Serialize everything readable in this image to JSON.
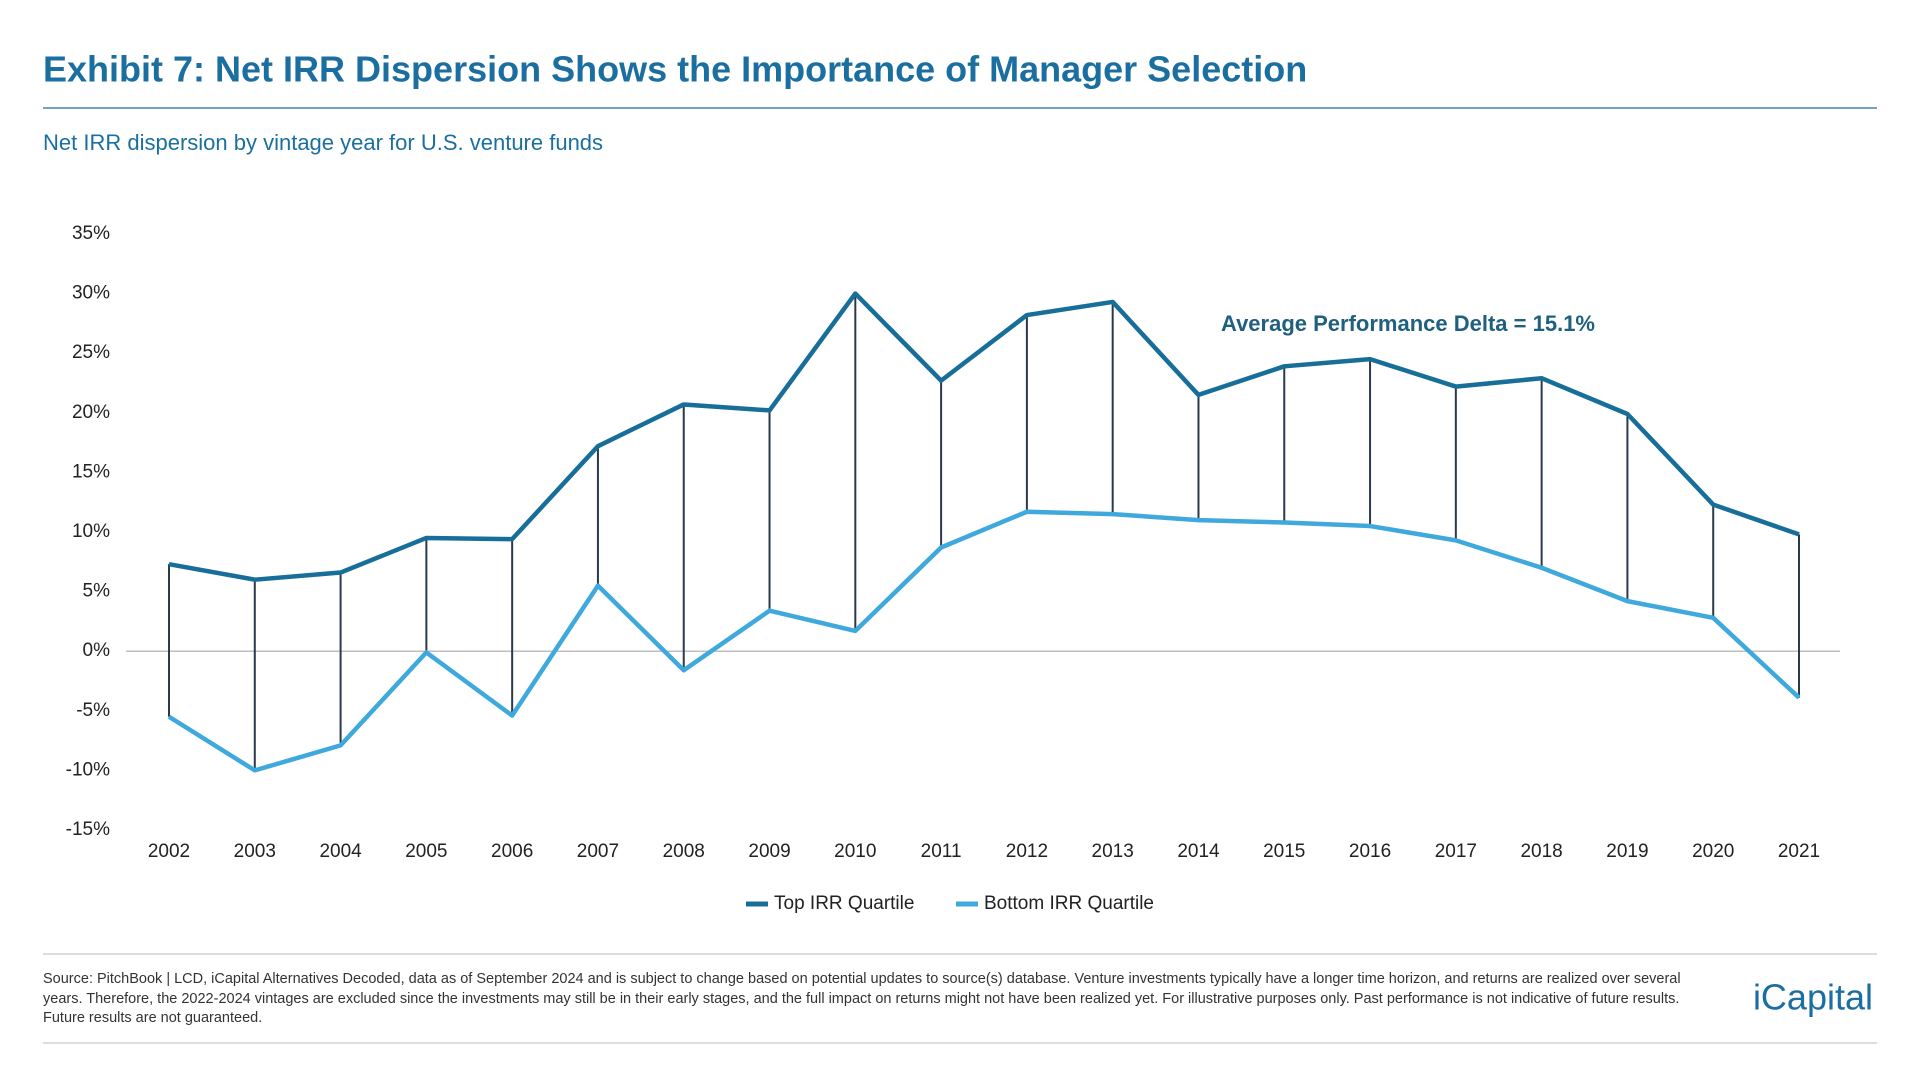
{
  "chart_data": {
    "type": "line",
    "title": "Exhibit 7: Net IRR Dispersion Shows the Importance of Manager Selection",
    "subtitle": "Net IRR dispersion by vintage year for U.S. venture funds",
    "annotation": "Average Performance Delta = 15.1%",
    "categories": [
      "2002",
      "2003",
      "2004",
      "2005",
      "2006",
      "2007",
      "2008",
      "2009",
      "2010",
      "2011",
      "2012",
      "2013",
      "2014",
      "2015",
      "2016",
      "2017",
      "2018",
      "2019",
      "2020",
      "2021"
    ],
    "series": [
      {
        "name": "Top IRR Quartile",
        "color": "#176e98",
        "values": [
          7.3,
          6.0,
          6.6,
          9.5,
          9.4,
          17.2,
          20.7,
          20.2,
          30.0,
          22.7,
          28.2,
          29.3,
          21.5,
          23.9,
          24.5,
          22.2,
          22.9,
          19.9,
          12.3,
          9.8
        ]
      },
      {
        "name": "Bottom IRR Quartile",
        "color": "#3fa9dd",
        "values": [
          -5.5,
          -10.0,
          -7.9,
          -0.1,
          -5.4,
          5.5,
          -1.6,
          3.4,
          1.7,
          8.7,
          11.7,
          11.5,
          11.0,
          10.8,
          10.5,
          9.3,
          7.0,
          4.2,
          2.8,
          -3.9
        ]
      }
    ],
    "connector_color": "#2b3a4a",
    "ylim": [
      -15,
      35
    ],
    "yticks": [
      {
        "value": -15,
        "label": "-15%"
      },
      {
        "value": -10,
        "label": "-10%"
      },
      {
        "value": -5,
        "label": "-5%"
      },
      {
        "value": 0,
        "label": "0%"
      },
      {
        "value": 5,
        "label": "5%"
      },
      {
        "value": 10,
        "label": "10%"
      },
      {
        "value": 15,
        "label": "15%"
      },
      {
        "value": 20,
        "label": "20%"
      },
      {
        "value": 25,
        "label": "25%"
      },
      {
        "value": 30,
        "label": "30%"
      },
      {
        "value": 35,
        "label": "35%"
      }
    ],
    "source": "Source: PitchBook | LCD, iCapital Alternatives Decoded, data as of September 2024 and is subject to change based on potential updates to source(s) database. Venture investments typically have a longer time horizon, and returns are realized over several years. Therefore, the 2022-2024 vintages are excluded since the investments may still be in their early stages, and the full impact on returns might not have been realized yet. For illustrative purposes only. Past performance is not indicative of future results. Future results are not guaranteed.",
    "logo": "iCapital"
  }
}
